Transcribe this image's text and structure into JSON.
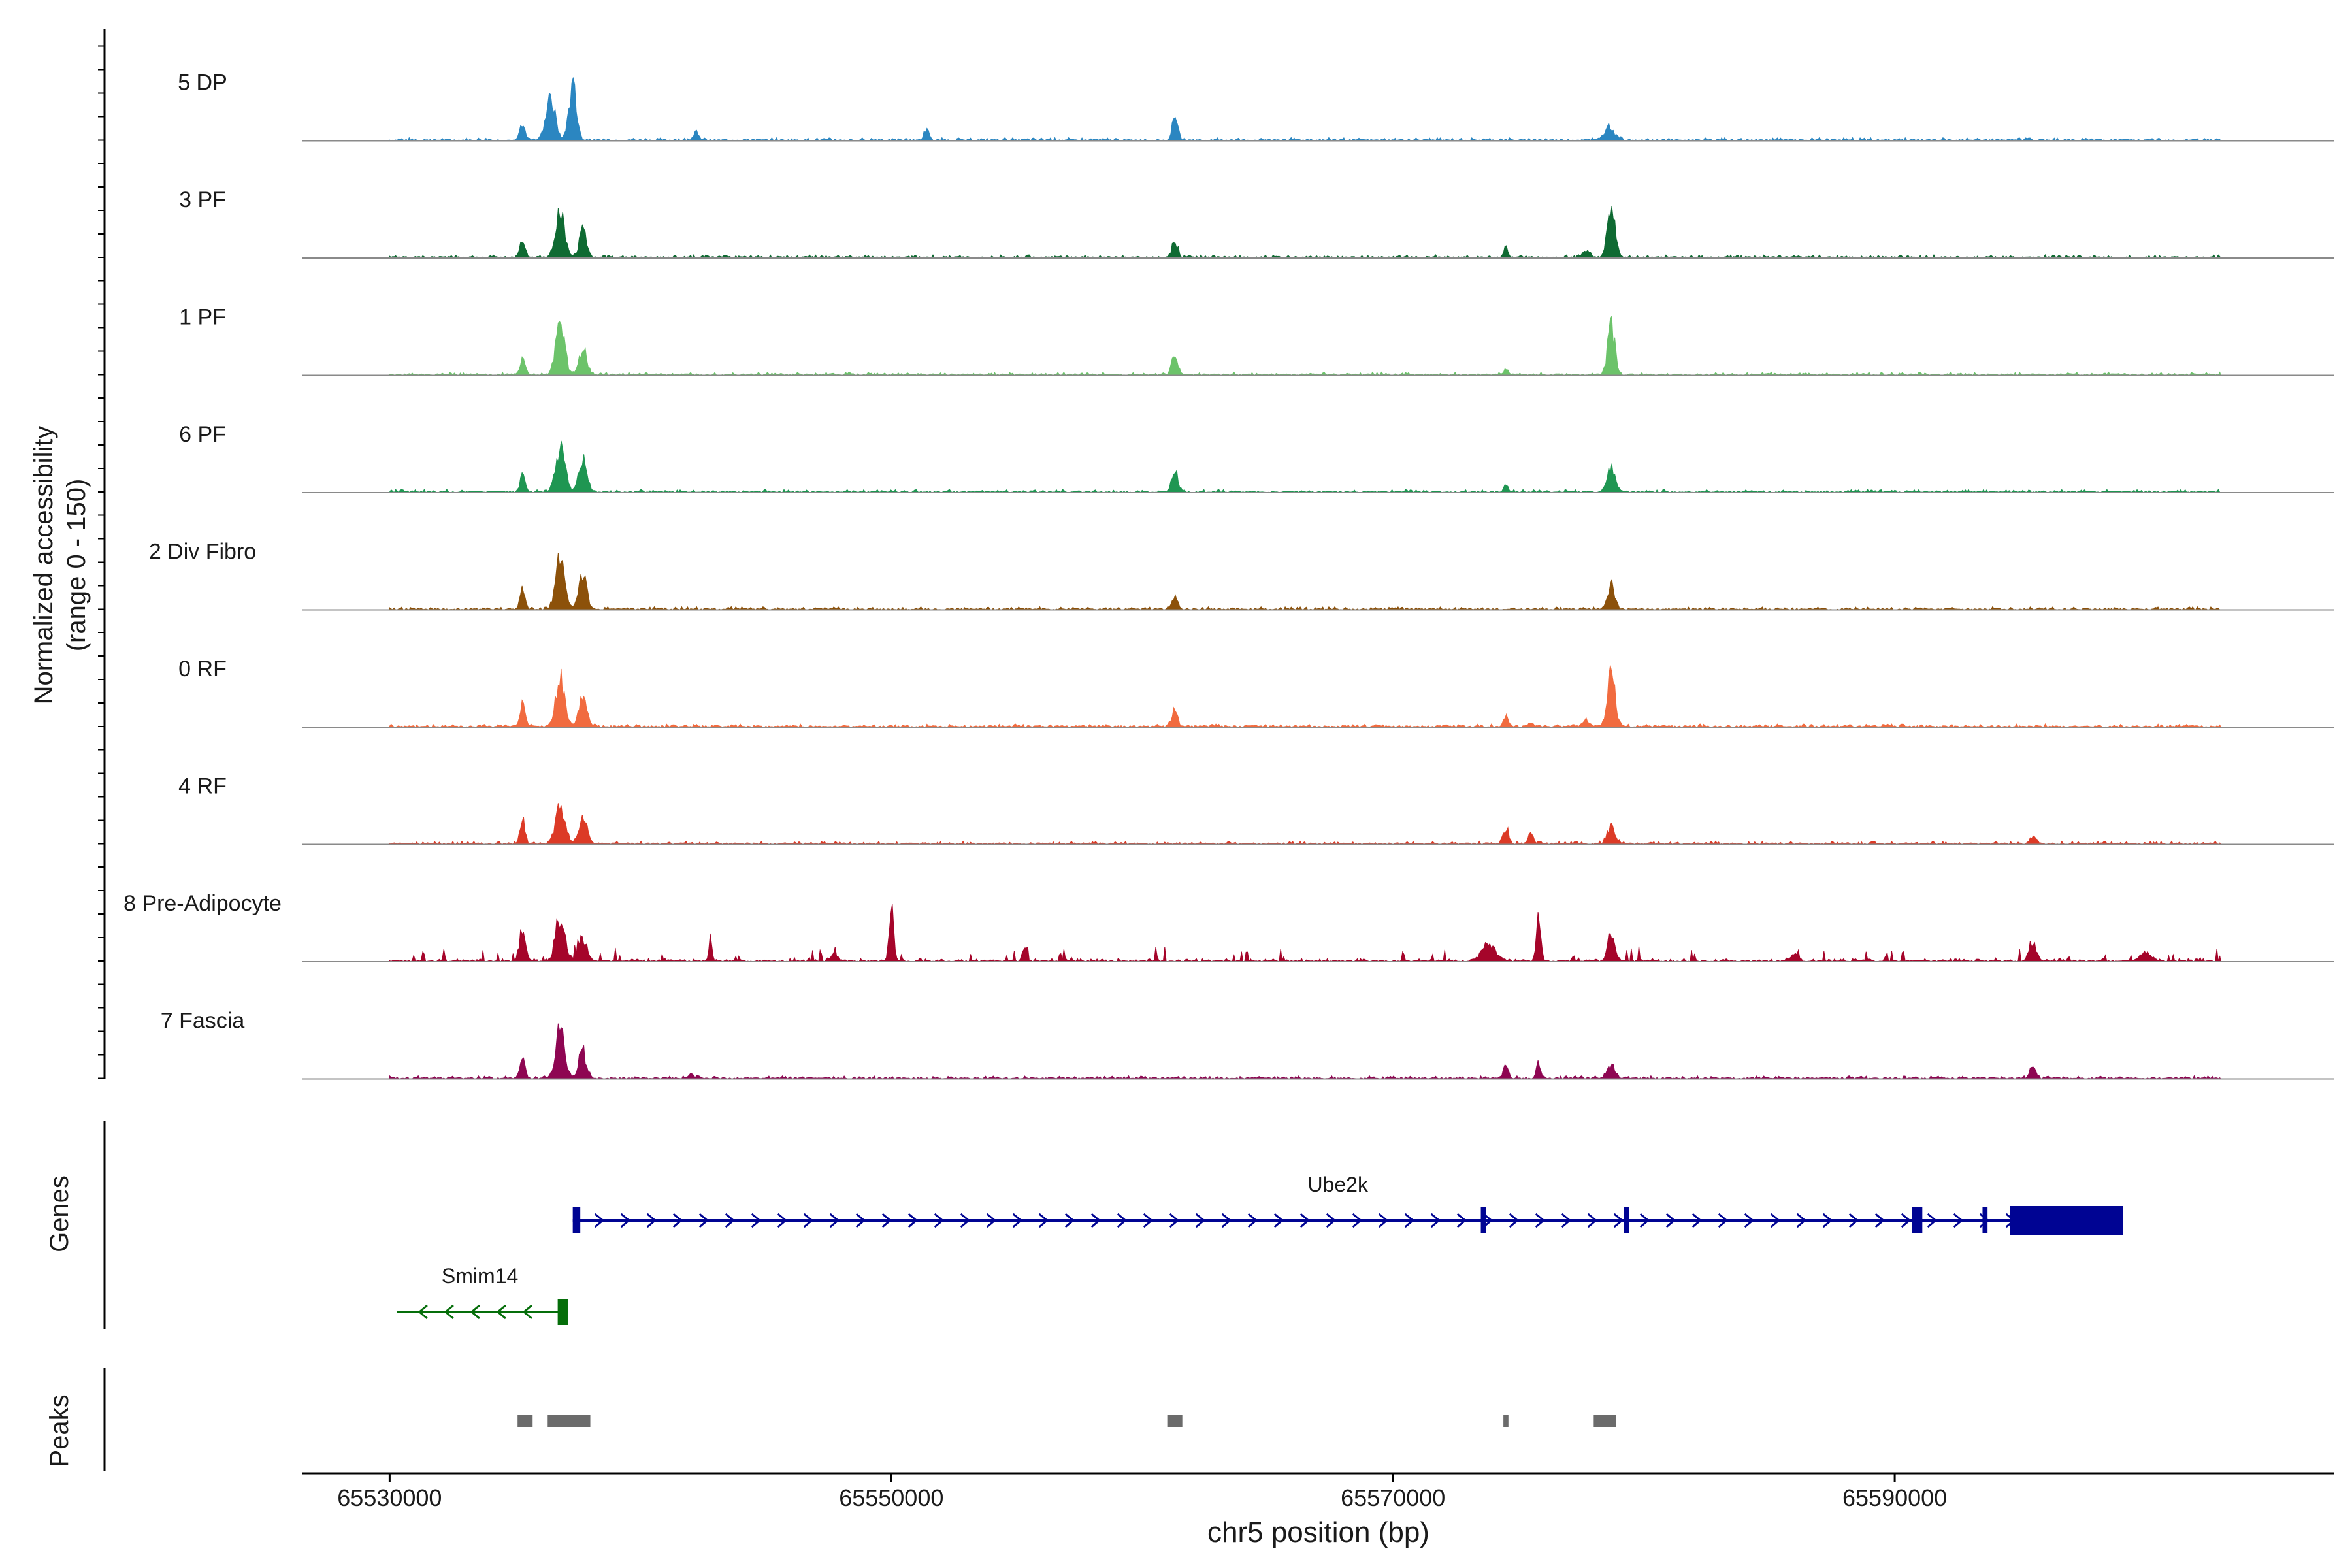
{
  "chart_data": {
    "type": "coverage",
    "title": "",
    "xlabel": "chr5 position (bp)",
    "ylabel_line1": "Normalized accessibility",
    "ylabel_line2": "(range 0 - 150)",
    "ylim": [
      0,
      150
    ],
    "xlim": [
      65526500,
      65607500
    ],
    "xticks": [
      65530000,
      65550000,
      65570000,
      65590000
    ],
    "xtick_labels": [
      "65530000",
      "65550000",
      "65570000",
      "65590000"
    ],
    "track_labels": {
      "genes": "Genes",
      "peaks": "Peaks"
    },
    "tracks": [
      {
        "name": "5 DP",
        "color": "#2b86c1",
        "peaks": [
          [
            65535300,
            25,
            150
          ],
          [
            65536400,
            75,
            260
          ],
          [
            65537300,
            90,
            210
          ],
          [
            65542200,
            14,
            150
          ],
          [
            65551400,
            18,
            150
          ],
          [
            65561300,
            35,
            160
          ],
          [
            65578600,
            20,
            300
          ]
        ]
      },
      {
        "name": "3 PF",
        "color": "#0f6a32",
        "peaks": [
          [
            65535300,
            30,
            140
          ],
          [
            65536800,
            80,
            260
          ],
          [
            65537700,
            45,
            200
          ],
          [
            65561300,
            30,
            160
          ],
          [
            65574500,
            18,
            120
          ],
          [
            65577700,
            12,
            200
          ],
          [
            65578700,
            75,
            220
          ]
        ]
      },
      {
        "name": "1 PF",
        "color": "#6cc36a",
        "peaks": [
          [
            65535300,
            25,
            140
          ],
          [
            65536800,
            90,
            240
          ],
          [
            65537700,
            50,
            200
          ],
          [
            65561300,
            35,
            160
          ],
          [
            65574500,
            10,
            120
          ],
          [
            65578700,
            85,
            200
          ]
        ]
      },
      {
        "name": "6 PF",
        "color": "#1f9652",
        "peaks": [
          [
            65535300,
            30,
            140
          ],
          [
            65536800,
            75,
            260
          ],
          [
            65537700,
            55,
            220
          ],
          [
            65561300,
            38,
            160
          ],
          [
            65574500,
            12,
            120
          ],
          [
            65578700,
            45,
            220
          ]
        ]
      },
      {
        "name": "2 Div Fibro",
        "color": "#8c510a",
        "peaks": [
          [
            65535300,
            35,
            140
          ],
          [
            65536800,
            85,
            250
          ],
          [
            65537700,
            60,
            220
          ],
          [
            65561300,
            22,
            160
          ],
          [
            65578700,
            40,
            200
          ]
        ]
      },
      {
        "name": "0 RF",
        "color": "#f16b3f",
        "peaks": [
          [
            65535300,
            40,
            140
          ],
          [
            65536800,
            80,
            250
          ],
          [
            65537700,
            50,
            220
          ],
          [
            65561300,
            28,
            160
          ],
          [
            65574500,
            14,
            150
          ],
          [
            65575500,
            8,
            120
          ],
          [
            65577700,
            12,
            180
          ],
          [
            65578700,
            85,
            220
          ]
        ]
      },
      {
        "name": "4 RF",
        "color": "#dc3a26",
        "peaks": [
          [
            65535300,
            40,
            140
          ],
          [
            65536800,
            70,
            260
          ],
          [
            65537700,
            45,
            220
          ],
          [
            65574500,
            30,
            150
          ],
          [
            65575500,
            22,
            120
          ],
          [
            65578700,
            30,
            220
          ],
          [
            65595500,
            14,
            150
          ]
        ]
      },
      {
        "name": "8 Pre-Adipocyte",
        "color": "#a5052a",
        "peaks": [
          [
            65535300,
            60,
            160
          ],
          [
            65536800,
            80,
            260
          ],
          [
            65537700,
            40,
            220
          ],
          [
            65542800,
            45,
            80
          ],
          [
            65550000,
            90,
            130
          ],
          [
            65547700,
            12,
            200
          ],
          [
            65555300,
            25,
            120
          ],
          [
            65573800,
            30,
            400
          ],
          [
            65575800,
            75,
            120
          ],
          [
            65578700,
            40,
            200
          ],
          [
            65595500,
            35,
            200
          ],
          [
            65586000,
            15,
            200
          ],
          [
            65600000,
            18,
            300
          ]
        ]
      },
      {
        "name": "7 Fascia",
        "color": "#8e0652",
        "peaks": [
          [
            65535300,
            35,
            140
          ],
          [
            65536800,
            90,
            250
          ],
          [
            65537700,
            45,
            220
          ],
          [
            65542000,
            8,
            150
          ],
          [
            65574500,
            18,
            150
          ],
          [
            65575800,
            30,
            120
          ],
          [
            65578700,
            20,
            240
          ],
          [
            65595500,
            22,
            150
          ]
        ]
      }
    ],
    "genes": [
      {
        "name": "Ube2k",
        "strand": "+",
        "color": "#000493",
        "start": 65537300,
        "end": 65599100,
        "exons": [
          [
            65537300,
            65537600
          ],
          [
            65573500,
            65573700
          ],
          [
            65579200,
            65579400
          ],
          [
            65590700,
            65591100
          ],
          [
            65593500,
            65593700
          ],
          [
            65594600,
            65599100
          ]
        ],
        "label_pos": 65567800
      },
      {
        "name": "Smim14",
        "strand": "-",
        "color": "#056e0a",
        "start": 65530300,
        "end": 65537100,
        "exons": [
          [
            65536700,
            65537100
          ]
        ],
        "label_pos": 65533600
      }
    ],
    "peaks": [
      [
        65535100,
        65535700
      ],
      [
        65536300,
        65538000
      ],
      [
        65561000,
        65561600
      ],
      [
        65574400,
        65574600
      ],
      [
        65578000,
        65578900
      ]
    ]
  }
}
